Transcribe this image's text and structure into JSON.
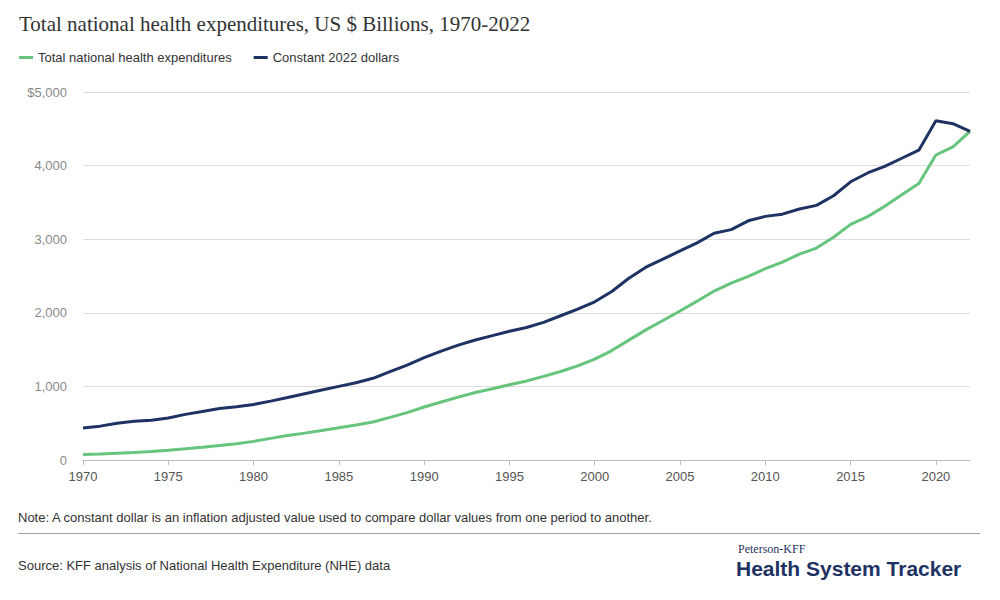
{
  "chart_data": {
    "type": "line",
    "title": "Total national health expenditures, US $ Billions, 1970-2022",
    "note": "Note: A constant dollar is an inflation adjusted value used to compare dollar values from one period to another.",
    "source": "Source: KFF analysis of National Health Expenditure (NHE) data",
    "logo": [
      "Peterson-KFF",
      "Health System Tracker"
    ],
    "x": [
      1970,
      1971,
      1972,
      1973,
      1974,
      1975,
      1976,
      1977,
      1978,
      1979,
      1980,
      1981,
      1982,
      1983,
      1984,
      1985,
      1986,
      1987,
      1988,
      1989,
      1990,
      1991,
      1992,
      1993,
      1994,
      1995,
      1996,
      1997,
      1998,
      1999,
      2000,
      2001,
      2002,
      2003,
      2004,
      2005,
      2006,
      2007,
      2008,
      2009,
      2010,
      2011,
      2012,
      2013,
      2014,
      2015,
      2016,
      2017,
      2018,
      2019,
      2020,
      2021,
      2022
    ],
    "series": [
      {
        "name": "Total national health expenditures",
        "color": "#66c47c",
        "values": [
          74,
          83,
          93,
          103,
          117,
          133,
          153,
          174,
          196,
          222,
          253,
          294,
          332,
          365,
          402,
          439,
          475,
          516,
          579,
          644,
          720,
          788,
          854,
          917,
          967,
          1022,
          1074,
          1136,
          1202,
          1278,
          1370,
          1487,
          1629,
          1768,
          1896,
          2024,
          2158,
          2296,
          2403,
          2495,
          2599,
          2689,
          2797,
          2879,
          3026,
          3201,
          3307,
          3447,
          3605,
          3757,
          4144,
          4255,
          4464
        ]
      },
      {
        "name": "Constant 2022 dollars",
        "color": "#1e3363",
        "values": [
          435,
          460,
          500,
          525,
          540,
          570,
          620,
          660,
          700,
          725,
          755,
          800,
          850,
          900,
          950,
          1000,
          1050,
          1110,
          1200,
          1290,
          1390,
          1480,
          1560,
          1630,
          1690,
          1750,
          1800,
          1870,
          1960,
          2050,
          2150,
          2290,
          2470,
          2620,
          2730,
          2840,
          2950,
          3080,
          3130,
          3250,
          3310,
          3340,
          3410,
          3460,
          3590,
          3780,
          3900,
          3990,
          4100,
          4210,
          4610,
          4570,
          4464
        ]
      }
    ],
    "xlim": [
      1970,
      2022
    ],
    "xticks": [
      1970,
      1975,
      1980,
      1985,
      1990,
      1995,
      2000,
      2005,
      2010,
      2015,
      2020
    ],
    "ylim": [
      0,
      5000
    ],
    "yticks": [
      0,
      {
        "value": 1000,
        "label": "1,000"
      },
      {
        "value": 2000,
        "label": "2,000"
      },
      {
        "value": 3000,
        "label": "3,000"
      },
      {
        "value": 4000,
        "label": "4,000"
      },
      {
        "value": 5000,
        "label": "$5,000"
      }
    ],
    "grid": true,
    "legend": "top-left"
  }
}
